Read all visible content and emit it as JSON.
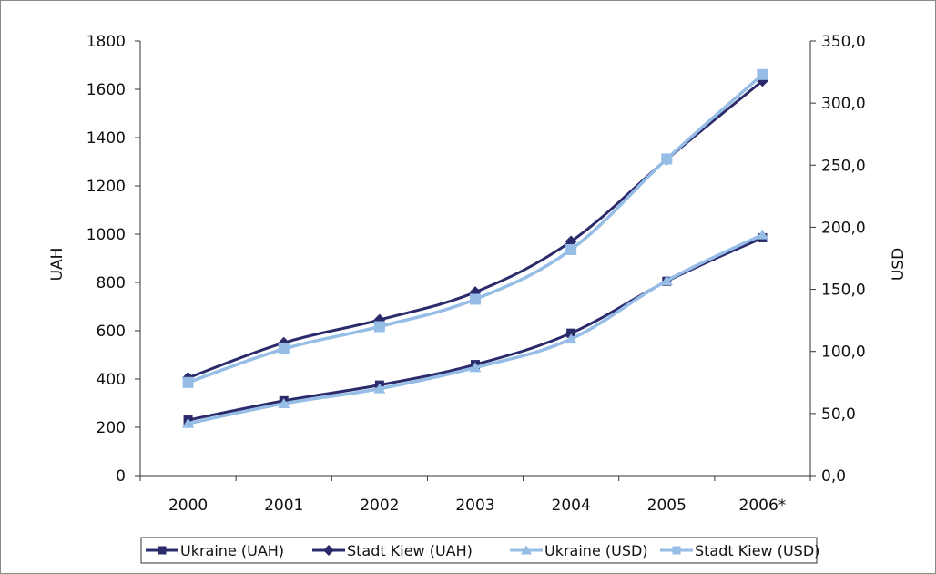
{
  "chart_data": {
    "type": "line",
    "categories": [
      "2000",
      "2001",
      "2002",
      "2003",
      "2004",
      "2005",
      "2006*"
    ],
    "y_left": {
      "label": "UAH",
      "range": [
        0,
        1800
      ],
      "ticks": [
        "0",
        "200",
        "400",
        "600",
        "800",
        "1000",
        "1200",
        "1400",
        "1600",
        "1800"
      ]
    },
    "y_right": {
      "label": "USD",
      "range": [
        0,
        350
      ],
      "ticks": [
        "0,0",
        "50,0",
        "100,0",
        "150,0",
        "200,0",
        "250,0",
        "300,0",
        "350,0"
      ]
    },
    "series": [
      {
        "name": "Ukraine (UAH)",
        "axis": "left",
        "color": "#2b2a6b",
        "marker": "square",
        "values": [
          230,
          310,
          375,
          460,
          590,
          805,
          985
        ]
      },
      {
        "name": "Stadt Kiew (UAH)",
        "axis": "left",
        "color": "#2b2a6b",
        "marker": "diamond",
        "values": [
          405,
          550,
          645,
          760,
          970,
          1310,
          1635
        ]
      },
      {
        "name": "Ukraine (USD)",
        "axis": "right",
        "color": "#95bde6",
        "marker": "triangle",
        "values": [
          42,
          58,
          70,
          87,
          110,
          157,
          194
        ]
      },
      {
        "name": "Stadt Kiew (USD)",
        "axis": "right",
        "color": "#95bde6",
        "marker": "square",
        "values": [
          75,
          102,
          120,
          142,
          182,
          255,
          323
        ]
      }
    ],
    "grid": false,
    "legend_position": "bottom"
  }
}
